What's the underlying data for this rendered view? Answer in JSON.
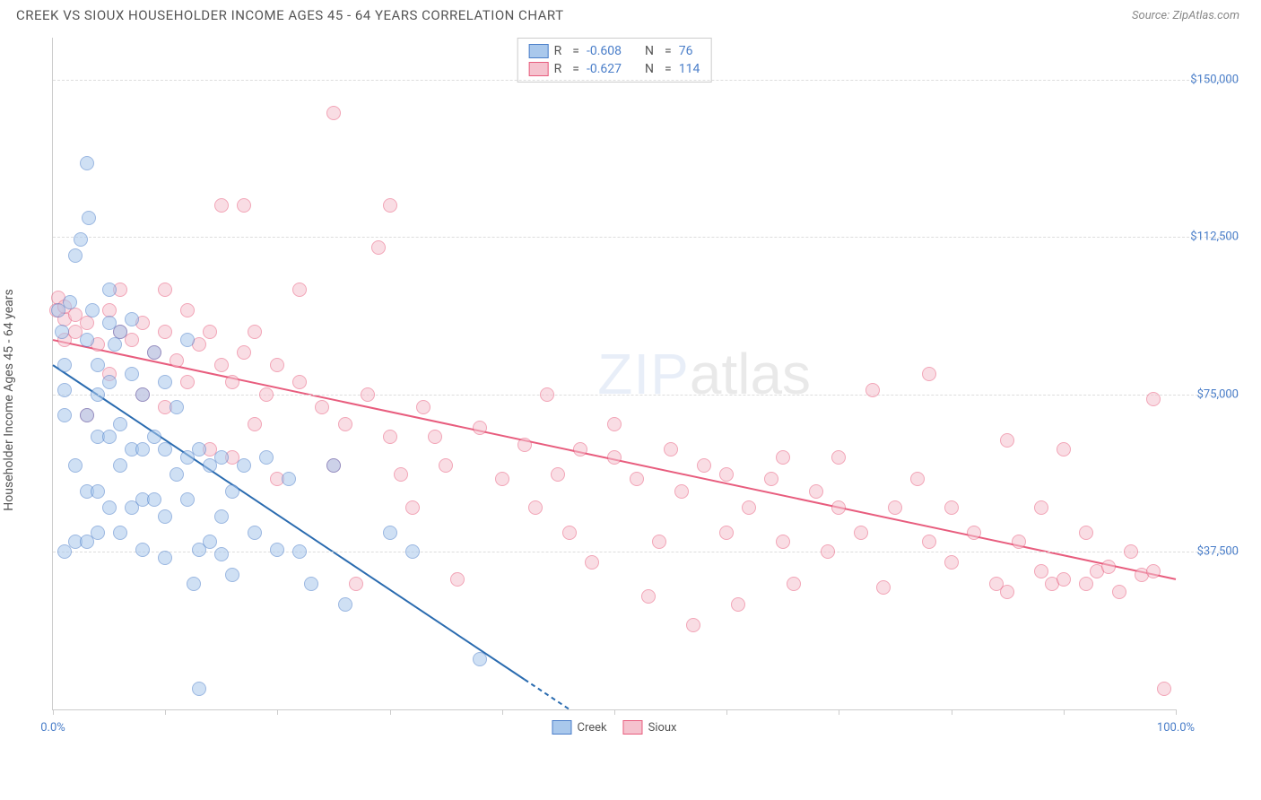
{
  "header": {
    "title": "CREEK VS SIOUX HOUSEHOLDER INCOME AGES 45 - 64 YEARS CORRELATION CHART",
    "source_prefix": "Source: ",
    "source_name": "ZipAtlas.com"
  },
  "chart": {
    "type": "scatter",
    "ylabel": "Householder Income Ages 45 - 64 years",
    "xlim": [
      0,
      100
    ],
    "ylim": [
      0,
      160000
    ],
    "x_ticks": [
      0,
      10,
      20,
      30,
      40,
      50,
      60,
      70,
      80,
      90,
      100
    ],
    "x_tick_labels": {
      "0": "0.0%",
      "100": "100.0%"
    },
    "y_gridlines": [
      37500,
      75000,
      112500,
      150000
    ],
    "y_tick_labels": [
      "$37,500",
      "$75,000",
      "$112,500",
      "$150,000"
    ],
    "background_color": "#ffffff",
    "grid_color": "#dddddd",
    "axis_color": "#cccccc",
    "marker_radius": 8,
    "marker_opacity": 0.55,
    "watermark": "ZIPatlas",
    "series": [
      {
        "name": "Creek",
        "color_fill": "#a9c8ec",
        "color_stroke": "#4a7ec9",
        "line_color": "#2b6cb0",
        "r_label": "R",
        "r_value": "-0.608",
        "n_label": "N",
        "n_value": "76",
        "trend": {
          "x1": 0,
          "y1": 82000,
          "x2": 46,
          "y2": 0,
          "dash_from_x": 42
        },
        "points": [
          [
            0.5,
            95000
          ],
          [
            0.8,
            90000
          ],
          [
            1,
            82000
          ],
          [
            1,
            76000
          ],
          [
            1,
            70000
          ],
          [
            1,
            37500
          ],
          [
            1.5,
            97000
          ],
          [
            2,
            108000
          ],
          [
            2,
            58000
          ],
          [
            2,
            40000
          ],
          [
            2.5,
            112000
          ],
          [
            3,
            130000
          ],
          [
            3,
            88000
          ],
          [
            3,
            70000
          ],
          [
            3,
            52000
          ],
          [
            3,
            40000
          ],
          [
            3.2,
            117000
          ],
          [
            3.5,
            95000
          ],
          [
            4,
            82000
          ],
          [
            4,
            75000
          ],
          [
            4,
            65000
          ],
          [
            4,
            52000
          ],
          [
            4,
            42000
          ],
          [
            5,
            100000
          ],
          [
            5,
            92000
          ],
          [
            5,
            78000
          ],
          [
            5,
            65000
          ],
          [
            5,
            48000
          ],
          [
            5.5,
            87000
          ],
          [
            6,
            90000
          ],
          [
            6,
            68000
          ],
          [
            6,
            58000
          ],
          [
            6,
            42000
          ],
          [
            7,
            93000
          ],
          [
            7,
            80000
          ],
          [
            7,
            62000
          ],
          [
            7,
            48000
          ],
          [
            8,
            75000
          ],
          [
            8,
            62000
          ],
          [
            8,
            50000
          ],
          [
            8,
            38000
          ],
          [
            9,
            85000
          ],
          [
            9,
            65000
          ],
          [
            9,
            50000
          ],
          [
            10,
            78000
          ],
          [
            10,
            62000
          ],
          [
            10,
            46000
          ],
          [
            10,
            36000
          ],
          [
            11,
            72000
          ],
          [
            11,
            56000
          ],
          [
            12,
            88000
          ],
          [
            12,
            60000
          ],
          [
            12,
            50000
          ],
          [
            12.5,
            30000
          ],
          [
            13,
            62000
          ],
          [
            13,
            38000
          ],
          [
            13,
            5000
          ],
          [
            14,
            58000
          ],
          [
            14,
            40000
          ],
          [
            15,
            60000
          ],
          [
            15,
            46000
          ],
          [
            15,
            37000
          ],
          [
            16,
            52000
          ],
          [
            16,
            32000
          ],
          [
            17,
            58000
          ],
          [
            18,
            42000
          ],
          [
            19,
            60000
          ],
          [
            20,
            38000
          ],
          [
            21,
            55000
          ],
          [
            22,
            37500
          ],
          [
            23,
            30000
          ],
          [
            25,
            58000
          ],
          [
            26,
            25000
          ],
          [
            30,
            42000
          ],
          [
            32,
            37500
          ],
          [
            38,
            12000
          ]
        ]
      },
      {
        "name": "Sioux",
        "color_fill": "#f5c2ce",
        "color_stroke": "#e85d7e",
        "line_color": "#e85d7e",
        "r_label": "R",
        "r_value": "-0.627",
        "n_label": "N",
        "n_value": "114",
        "trend": {
          "x1": 0,
          "y1": 88000,
          "x2": 100,
          "y2": 31000
        },
        "points": [
          [
            0.3,
            95000
          ],
          [
            0.5,
            98000
          ],
          [
            1,
            93000
          ],
          [
            1,
            88000
          ],
          [
            1,
            96000
          ],
          [
            2,
            90000
          ],
          [
            2,
            94000
          ],
          [
            3,
            70000
          ],
          [
            3,
            92000
          ],
          [
            4,
            87000
          ],
          [
            5,
            95000
          ],
          [
            5,
            80000
          ],
          [
            6,
            90000
          ],
          [
            6,
            100000
          ],
          [
            7,
            88000
          ],
          [
            8,
            92000
          ],
          [
            8,
            75000
          ],
          [
            9,
            85000
          ],
          [
            10,
            90000
          ],
          [
            10,
            100000
          ],
          [
            10,
            72000
          ],
          [
            11,
            83000
          ],
          [
            12,
            95000
          ],
          [
            12,
            78000
          ],
          [
            13,
            87000
          ],
          [
            14,
            90000
          ],
          [
            14,
            62000
          ],
          [
            15,
            82000
          ],
          [
            15,
            120000
          ],
          [
            16,
            78000
          ],
          [
            16,
            60000
          ],
          [
            17,
            120000
          ],
          [
            17,
            85000
          ],
          [
            18,
            90000
          ],
          [
            18,
            68000
          ],
          [
            19,
            75000
          ],
          [
            20,
            82000
          ],
          [
            20,
            55000
          ],
          [
            22,
            78000
          ],
          [
            22,
            100000
          ],
          [
            24,
            72000
          ],
          [
            25,
            142000
          ],
          [
            25,
            58000
          ],
          [
            26,
            68000
          ],
          [
            27,
            30000
          ],
          [
            28,
            75000
          ],
          [
            29,
            110000
          ],
          [
            30,
            65000
          ],
          [
            30,
            120000
          ],
          [
            31,
            56000
          ],
          [
            32,
            48000
          ],
          [
            33,
            72000
          ],
          [
            34,
            65000
          ],
          [
            35,
            58000
          ],
          [
            36,
            31000
          ],
          [
            38,
            67000
          ],
          [
            40,
            55000
          ],
          [
            42,
            63000
          ],
          [
            43,
            48000
          ],
          [
            44,
            75000
          ],
          [
            45,
            56000
          ],
          [
            46,
            42000
          ],
          [
            47,
            62000
          ],
          [
            48,
            35000
          ],
          [
            50,
            60000
          ],
          [
            50,
            68000
          ],
          [
            52,
            55000
          ],
          [
            53,
            27000
          ],
          [
            54,
            40000
          ],
          [
            55,
            62000
          ],
          [
            56,
            52000
          ],
          [
            57,
            20000
          ],
          [
            58,
            58000
          ],
          [
            60,
            42000
          ],
          [
            60,
            56000
          ],
          [
            61,
            25000
          ],
          [
            62,
            48000
          ],
          [
            64,
            55000
          ],
          [
            65,
            40000
          ],
          [
            65,
            60000
          ],
          [
            66,
            30000
          ],
          [
            68,
            52000
          ],
          [
            69,
            37500
          ],
          [
            70,
            48000
          ],
          [
            70,
            60000
          ],
          [
            72,
            42000
          ],
          [
            73,
            76000
          ],
          [
            74,
            29000
          ],
          [
            75,
            48000
          ],
          [
            77,
            55000
          ],
          [
            78,
            80000
          ],
          [
            78,
            40000
          ],
          [
            80,
            35000
          ],
          [
            80,
            48000
          ],
          [
            82,
            42000
          ],
          [
            84,
            30000
          ],
          [
            85,
            64000
          ],
          [
            85,
            28000
          ],
          [
            86,
            40000
          ],
          [
            88,
            33000
          ],
          [
            88,
            48000
          ],
          [
            89,
            30000
          ],
          [
            90,
            62000
          ],
          [
            90,
            31000
          ],
          [
            92,
            30000
          ],
          [
            92,
            42000
          ],
          [
            93,
            33000
          ],
          [
            94,
            34000
          ],
          [
            95,
            28000
          ],
          [
            96,
            37500
          ],
          [
            97,
            32000
          ],
          [
            98,
            74000
          ],
          [
            98,
            33000
          ],
          [
            99,
            5000
          ]
        ]
      }
    ],
    "bottom_legend": [
      "Creek",
      "Sioux"
    ]
  }
}
